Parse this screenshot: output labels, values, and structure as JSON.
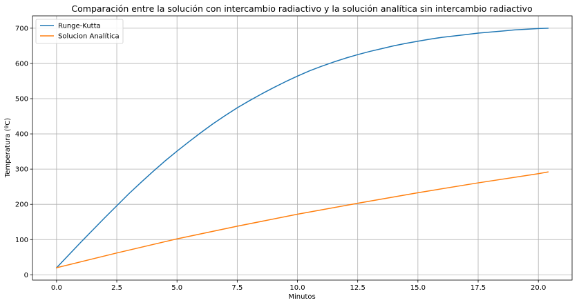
{
  "chart_data": {
    "type": "line",
    "title": "Comparación entre la solución con intercambio radiactivo y la solución analítica sin intercambio radiactivo",
    "xlabel": "Minutos",
    "ylabel": "Temperatura (ºC)",
    "xlim": [
      -1.0,
      21.4
    ],
    "ylim": [
      -15,
      735
    ],
    "xticks": [
      0.0,
      2.5,
      5.0,
      7.5,
      10.0,
      12.5,
      15.0,
      17.5,
      20.0
    ],
    "xtick_labels": [
      "0.0",
      "2.5",
      "5.0",
      "7.5",
      "10.0",
      "12.5",
      "15.0",
      "17.5",
      "20.0"
    ],
    "yticks": [
      0,
      100,
      200,
      300,
      400,
      500,
      600,
      700
    ],
    "ytick_labels": [
      "0",
      "100",
      "200",
      "300",
      "400",
      "500",
      "600",
      "700"
    ],
    "grid": true,
    "legend_position": "upper-left",
    "series": [
      {
        "name": "Runge-Kutta",
        "color": "#1f77b4",
        "x": [
          0.0,
          0.5,
          1.0,
          1.5,
          2.0,
          2.5,
          3.0,
          3.5,
          4.0,
          4.5,
          5.0,
          5.5,
          6.0,
          6.5,
          7.0,
          7.5,
          8.0,
          8.5,
          9.0,
          9.5,
          10.0,
          10.5,
          11.0,
          11.5,
          12.0,
          12.5,
          13.0,
          13.5,
          14.0,
          14.5,
          15.0,
          15.5,
          16.0,
          16.5,
          17.0,
          17.5,
          18.0,
          18.5,
          19.0,
          19.5,
          20.0,
          20.4
        ],
        "y": [
          20,
          56,
          92,
          127,
          162,
          196,
          230,
          262,
          293,
          323,
          351,
          378,
          404,
          429,
          452,
          474,
          494,
          513,
          531,
          548,
          564,
          579,
          592,
          604,
          615,
          625,
          634,
          642,
          650,
          657,
          663,
          669,
          674,
          678,
          682,
          686,
          689,
          692,
          695,
          697,
          699,
          700
        ]
      },
      {
        "name": "Solucion Analítica",
        "color": "#ff7f0e",
        "x": [
          0.0,
          2.5,
          5.0,
          7.5,
          10.0,
          12.5,
          15.0,
          17.5,
          20.0,
          20.4
        ],
        "y": [
          20,
          62,
          102,
          138,
          172,
          203,
          233,
          261,
          287,
          292
        ]
      }
    ]
  }
}
